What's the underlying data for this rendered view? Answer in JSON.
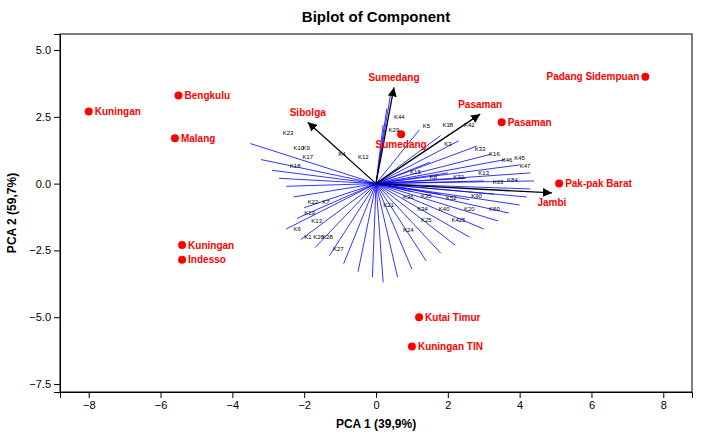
{
  "chart_data": {
    "type": "biplot",
    "title": "Biplot of Component",
    "xlabel": "PCA 1 (39,9%)",
    "ylabel": "PCA 2 (59,7%)",
    "xlim": [
      -8.8,
      8.8
    ],
    "ylim": [
      -7.8,
      5.6
    ],
    "xticks": [
      -8,
      -6,
      -4,
      -2,
      0,
      2,
      4,
      6,
      8
    ],
    "yticks": [
      -7.5,
      {
        "value": -5,
        "label": "−5.0"
      },
      -2.5,
      {
        "value": 0,
        "label": "0.0"
      },
      2.5,
      {
        "value": 5,
        "label": "5.0"
      }
    ],
    "grid": false,
    "points": {
      "color": "red",
      "x": [
        -8.0,
        -5.5,
        -5.6,
        -5.4,
        -5.4,
        7.5,
        5.1,
        3.5,
        0.7,
        1.2,
        1.0
      ],
      "y": [
        2.7,
        3.3,
        1.7,
        -2.85,
        -2.3,
        4.0,
        0.0,
        2.3,
        1.85,
        -5.0,
        -6.1
      ],
      "labels": [
        "Kuningan",
        "Bengkulu",
        "Malang",
        "Indesso",
        "Kuningan",
        "Padang Sidempuan",
        "Pak-pak Barat",
        "Pasaman",
        "Sumedang",
        "Kutai Timur",
        "Kuningan TIN"
      ]
    },
    "arrows": {
      "color": "black",
      "label_color": "red",
      "x": [
        -1.9,
        0.5,
        2.9,
        4.9
      ],
      "y": [
        2.3,
        3.6,
        2.6,
        -0.35
      ],
      "labels": [
        "Sibolga",
        "Sumedang",
        "Pasaman",
        "Jambi"
      ]
    },
    "k_labels": {
      "color": "black",
      "x": [
        -2.6,
        -2.3,
        -2.05,
        -2.4,
        -1.9,
        -1.5,
        -2.0,
        -1.8,
        -2.3,
        -2.0,
        -1.75,
        -1.5,
        -1.2,
        -1.05,
        -0.5,
        0.2,
        0.5,
        0.35,
        1.3,
        1.85,
        2.45,
        1.9,
        2.75,
        3.15,
        3.5,
        3.85,
        4.0,
        0.95,
        1.5,
        2.15,
        2.85,
        3.25,
        3.65,
        0.75,
        1.25,
        1.95,
        2.65,
        1.15,
        1.75,
        2.45,
        3.15,
        1.25,
        2.1,
        0.75,
        -2.05
      ],
      "y": [
        1.9,
        1.35,
        1.0,
        0.65,
        -0.7,
        -0.7,
        -1.1,
        -1.4,
        -1.7,
        -2.0,
        -2.0,
        -2.0,
        -2.45,
        1.1,
        1.0,
        -0.8,
        2.5,
        2.0,
        2.15,
        2.2,
        2.2,
        1.5,
        1.3,
        1.1,
        0.9,
        0.95,
        0.65,
        0.45,
        0.25,
        0.25,
        0.4,
        0.05,
        0.15,
        -0.5,
        -0.45,
        -0.55,
        -0.45,
        -0.95,
        -0.95,
        -0.95,
        -0.95,
        -1.35,
        -1.35,
        -1.75,
        1.35
      ],
      "labels": [
        "K23",
        "K10",
        "K17",
        "K18",
        "K22",
        "K7",
        "K19",
        "K13",
        "K6",
        "K1",
        "K26",
        "K28",
        "K27",
        "K4",
        "K12",
        "K21",
        "K44",
        "K29",
        "K5",
        "K38",
        "K42",
        "K3",
        "K33",
        "K16",
        "K46",
        "K45",
        "K47",
        "K15",
        "K8",
        "K32",
        "K13",
        "K63",
        "K84",
        "K36",
        "K35",
        "K52",
        "K90",
        "K34",
        "K40",
        "K20",
        "K60",
        "K25",
        "K425",
        "K24",
        "K9"
      ]
    },
    "vectors": {
      "color": "blue",
      "x": [
        -3.5,
        -3.2,
        -2.9,
        -2.7,
        -2.5,
        -2.3,
        -2.0,
        -2.2,
        -2.5,
        -2.1,
        -1.7,
        -1.3,
        -0.9,
        -0.5,
        -0.1,
        0.4,
        0.3,
        0.2,
        1.2,
        1.8,
        2.3,
        2.8,
        3.2,
        3.6,
        4.0,
        4.3,
        4.4,
        4.3,
        4.2,
        4.0,
        3.7,
        3.4,
        3.0,
        2.6,
        2.2,
        1.8,
        1.4,
        1.0,
        0.6,
        0.2,
        1.5,
        2.0,
        2.5,
        3.0,
        1.0,
        1.8,
        2.6,
        3.3
      ],
      "y": [
        1.5,
        0.9,
        0.5,
        0.2,
        -0.1,
        -0.5,
        -0.9,
        -1.3,
        -1.7,
        -2.1,
        -2.4,
        -2.7,
        -3.0,
        -3.3,
        -3.5,
        3.3,
        2.8,
        2.2,
        2.0,
        1.8,
        1.6,
        1.4,
        1.1,
        0.9,
        0.7,
        0.4,
        0.1,
        -0.2,
        -0.5,
        -0.8,
        -1.1,
        -1.4,
        -1.7,
        -2.0,
        -2.3,
        -2.6,
        -2.9,
        -3.2,
        -3.5,
        -3.7,
        0.8,
        0.4,
        0.2,
        0.1,
        -0.3,
        -0.4,
        -0.6,
        -0.4
      ]
    }
  }
}
